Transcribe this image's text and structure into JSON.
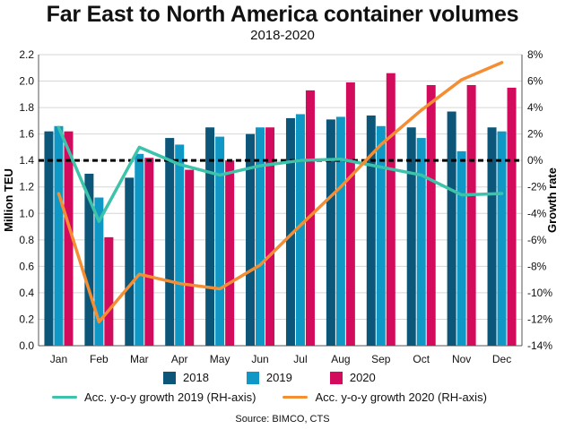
{
  "chart_data": {
    "type": "bar",
    "title": "Far East to North America container volumes",
    "subtitle": "2018-2020",
    "categories": [
      "Jan",
      "Feb",
      "Mar",
      "Apr",
      "May",
      "Jun",
      "Jul",
      "Aug",
      "Sep",
      "Oct",
      "Nov",
      "Dec"
    ],
    "ylabel": "Million TEU",
    "y2label": "Growth rate",
    "ylim": [
      0,
      2.2
    ],
    "y2lim": [
      -14,
      8
    ],
    "yticks": [
      "0.0",
      "0.2",
      "0.4",
      "0.6",
      "0.8",
      "1.0",
      "1.2",
      "1.4",
      "1.6",
      "1.8",
      "2.0",
      "2.2"
    ],
    "y2ticks": [
      "-14%",
      "-12%",
      "-10%",
      "-8%",
      "-6%",
      "-4%",
      "-2%",
      "0%",
      "2%",
      "4%",
      "6%",
      "8%"
    ],
    "reference_line": {
      "axis": "y2",
      "value": 0
    },
    "series": [
      {
        "name": "2018",
        "kind": "bar",
        "color": "#0b5679",
        "values": [
          1.62,
          1.3,
          1.27,
          1.57,
          1.65,
          1.6,
          1.72,
          1.71,
          1.74,
          1.65,
          1.77,
          1.65
        ]
      },
      {
        "name": "2019",
        "kind": "bar",
        "color": "#0f97c6",
        "values": [
          1.66,
          1.12,
          1.45,
          1.52,
          1.58,
          1.65,
          1.75,
          1.73,
          1.66,
          1.57,
          1.47,
          1.62
        ]
      },
      {
        "name": "2020",
        "kind": "bar",
        "color": "#d30b5d",
        "values": [
          1.62,
          0.82,
          1.42,
          1.33,
          1.4,
          1.65,
          1.93,
          1.99,
          2.06,
          1.97,
          1.97,
          1.95
        ]
      },
      {
        "name": "Acc. y-o-y growth 2019 (RH-axis)",
        "kind": "line",
        "axis": "y2",
        "color": "#3cc3aa",
        "values": [
          2.5,
          -4.6,
          1.0,
          -0.3,
          -1.1,
          -0.4,
          0.0,
          0.1,
          -0.5,
          -1.1,
          -2.6,
          -2.5
        ]
      },
      {
        "name": "Acc. y-o-y growth 2020 (RH-axis)",
        "kind": "line",
        "axis": "y2",
        "color": "#f58d33",
        "values": [
          -2.5,
          -12.2,
          -8.6,
          -9.3,
          -9.7,
          -7.9,
          -4.9,
          -2.0,
          1.2,
          3.8,
          6.1,
          7.4
        ]
      }
    ],
    "source": "Source: BIMCO, CTS"
  }
}
